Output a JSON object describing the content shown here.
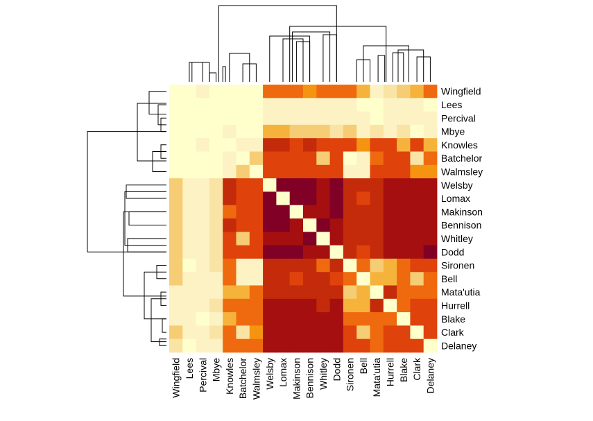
{
  "chart_data": {
    "type": "heatmap",
    "title": "",
    "xlabel": "",
    "ylabel": "",
    "row_dendrogram": true,
    "col_dendrogram": true,
    "row_labels": [
      "Wingfield",
      "Lees",
      "Percival",
      "Mbye",
      "Knowles",
      "Batchelor",
      "Walmsley",
      "Welsby",
      "Lomax",
      "Makinson",
      "Bennison",
      "Whitley",
      "Dodd",
      "Sironen",
      "Bell",
      "Mata'utia",
      "Hurrell",
      "Blake",
      "Clark",
      "Delaney"
    ],
    "col_labels": [
      "Wingfield",
      "Lees",
      "Percival",
      "Mbye",
      "Knowles",
      "Batchelor",
      "Walmsley",
      "Welsby",
      "Lomax",
      "Makinson",
      "Bennison",
      "Whitley",
      "Dodd",
      "Sironen",
      "Bell",
      "Mata'utia",
      "Hurrell",
      "Blake",
      "Clark",
      "Delaney"
    ],
    "color_scale": [
      "#800026",
      "#A50F0F",
      "#C42B0A",
      "#DF420B",
      "#EF6A0E",
      "#F59410",
      "#F6B33C",
      "#F6CC74",
      "#F9E4A6",
      "#FCF2C4",
      "#FFFFCC"
    ],
    "scale_note": "0 = diagonal / most similar (pale), 10 = strongest (dark red)",
    "values": [
      [
        0,
        0,
        1,
        0,
        0,
        0,
        0,
        6,
        6,
        6,
        5,
        6,
        6,
        6,
        4,
        1,
        2,
        3,
        4,
        6
      ],
      [
        0,
        0,
        0,
        0,
        0,
        0,
        0,
        1,
        1,
        1,
        1,
        1,
        1,
        1,
        0,
        0,
        1,
        1,
        1,
        0
      ],
      [
        0,
        0,
        0,
        0,
        0,
        0,
        0,
        1,
        1,
        1,
        1,
        1,
        1,
        1,
        1,
        0,
        1,
        1,
        1,
        1
      ],
      [
        0,
        0,
        0,
        0,
        1,
        0,
        0,
        4,
        4,
        3,
        3,
        3,
        2,
        3,
        1,
        2,
        1,
        2,
        0,
        1
      ],
      [
        0,
        0,
        1,
        0,
        0,
        1,
        1,
        8,
        8,
        7,
        8,
        7,
        7,
        7,
        5,
        7,
        7,
        4,
        7,
        4
      ],
      [
        0,
        0,
        0,
        0,
        1,
        0,
        3,
        7,
        7,
        7,
        7,
        3,
        7,
        0,
        1,
        6,
        7,
        7,
        2,
        6
      ],
      [
        0,
        0,
        0,
        0,
        1,
        3,
        0,
        7,
        7,
        7,
        7,
        7,
        7,
        1,
        1,
        7,
        7,
        7,
        5,
        5
      ],
      [
        3,
        1,
        1,
        2,
        8,
        7,
        7,
        0,
        10,
        10,
        10,
        9,
        10,
        8,
        8,
        8,
        9,
        9,
        9,
        9
      ],
      [
        3,
        1,
        1,
        2,
        8,
        7,
        7,
        10,
        0,
        10,
        10,
        9,
        10,
        8,
        7,
        8,
        9,
        9,
        9,
        9
      ],
      [
        3,
        1,
        1,
        2,
        6,
        7,
        7,
        10,
        10,
        0,
        9,
        9,
        10,
        8,
        8,
        8,
        9,
        9,
        9,
        9
      ],
      [
        3,
        1,
        1,
        2,
        8,
        7,
        7,
        10,
        10,
        9,
        0,
        10,
        9,
        8,
        8,
        8,
        9,
        9,
        9,
        9
      ],
      [
        3,
        1,
        1,
        2,
        7,
        3,
        7,
        9,
        9,
        9,
        10,
        0,
        9,
        8,
        8,
        8,
        9,
        9,
        9,
        9
      ],
      [
        3,
        1,
        1,
        2,
        7,
        7,
        7,
        10,
        10,
        10,
        9,
        9,
        0,
        8,
        7,
        8,
        9,
        9,
        9,
        10
      ],
      [
        3,
        0,
        1,
        2,
        6,
        1,
        1,
        8,
        8,
        8,
        8,
        6,
        8,
        0,
        6,
        3,
        4,
        6,
        7,
        7
      ],
      [
        3,
        1,
        1,
        1,
        6,
        1,
        1,
        8,
        8,
        7,
        8,
        8,
        7,
        6,
        0,
        4,
        4,
        6,
        3,
        6
      ],
      [
        1,
        1,
        1,
        1,
        4,
        4,
        6,
        8,
        8,
        8,
        8,
        8,
        8,
        3,
        4,
        0,
        8,
        6,
        6,
        6
      ],
      [
        1,
        1,
        1,
        2,
        6,
        6,
        6,
        9,
        9,
        9,
        9,
        8,
        9,
        4,
        4,
        8,
        0,
        6,
        7,
        7
      ],
      [
        1,
        1,
        0,
        1,
        4,
        6,
        6,
        9,
        9,
        9,
        9,
        9,
        9,
        6,
        6,
        6,
        6,
        0,
        7,
        7
      ],
      [
        3,
        1,
        1,
        2,
        6,
        2,
        5,
        9,
        9,
        9,
        9,
        9,
        9,
        7,
        3,
        6,
        7,
        7,
        0,
        7
      ],
      [
        2,
        0,
        1,
        1,
        6,
        6,
        6,
        9,
        9,
        9,
        9,
        9,
        9,
        7,
        7,
        6,
        7,
        7,
        7,
        0
      ]
    ]
  }
}
